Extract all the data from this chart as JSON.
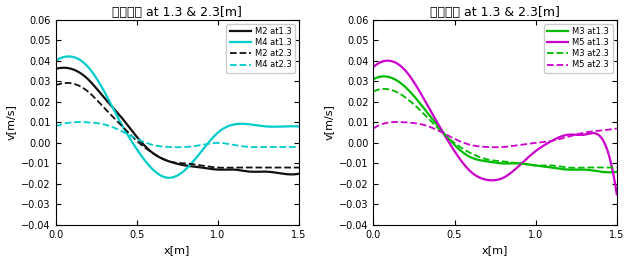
{
  "title": "상승속도 at 1.3 & 2.3[m]",
  "xlabel": "x[m]",
  "ylabel": "v[m/s]",
  "xlim": [
    0,
    1.5
  ],
  "ylim": [
    -0.04,
    0.06
  ],
  "yticks": [
    -0.04,
    -0.03,
    -0.02,
    -0.01,
    0,
    0.01,
    0.02,
    0.03,
    0.04,
    0.05,
    0.06
  ],
  "xticks": [
    0,
    0.5,
    1.0,
    1.5
  ],
  "left": {
    "series": [
      {
        "label": "M2 at1.3",
        "color": "#111111",
        "linestyle": "solid",
        "linewidth": 1.6,
        "x": [
          0.0,
          0.1,
          0.2,
          0.3,
          0.4,
          0.5,
          0.6,
          0.7,
          0.8,
          0.9,
          1.0,
          1.1,
          1.2,
          1.3,
          1.4,
          1.5
        ],
        "y": [
          0.036,
          0.036,
          0.031,
          0.022,
          0.013,
          0.003,
          -0.005,
          -0.009,
          -0.011,
          -0.012,
          -0.013,
          -0.013,
          -0.014,
          -0.014,
          -0.015,
          -0.015
        ]
      },
      {
        "label": "M4 at1.3",
        "color": "#00cccc",
        "linestyle": "solid",
        "linewidth": 1.6,
        "x": [
          0.0,
          0.1,
          0.2,
          0.3,
          0.4,
          0.5,
          0.6,
          0.7,
          0.8,
          0.9,
          1.0,
          1.1,
          1.2,
          1.3,
          1.4,
          1.5
        ],
        "y": [
          0.04,
          0.042,
          0.037,
          0.025,
          0.01,
          -0.003,
          -0.013,
          -0.017,
          -0.013,
          -0.004,
          0.005,
          0.009,
          0.009,
          0.008,
          0.008,
          0.008
        ]
      },
      {
        "label": "M2 at2.3",
        "color": "#111111",
        "linestyle": "dashed",
        "linewidth": 1.3,
        "x": [
          0.0,
          0.1,
          0.2,
          0.3,
          0.4,
          0.5,
          0.6,
          0.7,
          0.8,
          0.9,
          1.0,
          1.1,
          1.2,
          1.3,
          1.4,
          1.5
        ],
        "y": [
          0.028,
          0.029,
          0.025,
          0.017,
          0.009,
          0.001,
          -0.005,
          -0.009,
          -0.01,
          -0.011,
          -0.012,
          -0.012,
          -0.012,
          -0.012,
          -0.012,
          -0.012
        ]
      },
      {
        "label": "M4 at2.3",
        "color": "#00cccc",
        "linestyle": "dashed",
        "linewidth": 1.3,
        "x": [
          0.0,
          0.1,
          0.2,
          0.3,
          0.4,
          0.5,
          0.6,
          0.7,
          0.8,
          0.9,
          1.0,
          1.1,
          1.2,
          1.3,
          1.4,
          1.5
        ],
        "y": [
          0.008,
          0.01,
          0.01,
          0.009,
          0.006,
          0.002,
          -0.001,
          -0.002,
          -0.002,
          -0.001,
          0.0,
          -0.001,
          -0.002,
          -0.002,
          -0.002,
          -0.002
        ]
      }
    ]
  },
  "right": {
    "series": [
      {
        "label": "M3 at1.3",
        "color": "#00bb00",
        "linestyle": "solid",
        "linewidth": 1.6,
        "x": [
          0.0,
          0.1,
          0.2,
          0.3,
          0.4,
          0.5,
          0.6,
          0.7,
          0.8,
          0.9,
          1.0,
          1.1,
          1.2,
          1.3,
          1.4,
          1.5
        ],
        "y": [
          0.031,
          0.032,
          0.027,
          0.018,
          0.008,
          -0.001,
          -0.007,
          -0.009,
          -0.01,
          -0.01,
          -0.011,
          -0.012,
          -0.013,
          -0.013,
          -0.014,
          -0.014
        ]
      },
      {
        "label": "M5 at1.3",
        "color": "#cc00cc",
        "linestyle": "solid",
        "linewidth": 1.6,
        "x": [
          0.0,
          0.1,
          0.2,
          0.3,
          0.4,
          0.5,
          0.6,
          0.7,
          0.8,
          0.9,
          1.0,
          1.1,
          1.2,
          1.3,
          1.4,
          1.5
        ],
        "y": [
          0.037,
          0.04,
          0.035,
          0.023,
          0.009,
          -0.004,
          -0.014,
          -0.018,
          -0.017,
          -0.011,
          -0.004,
          0.001,
          0.004,
          0.004,
          0.003,
          -0.025
        ]
      },
      {
        "label": "M3 at2.3",
        "color": "#00bb00",
        "linestyle": "dashed",
        "linewidth": 1.3,
        "x": [
          0.0,
          0.1,
          0.2,
          0.3,
          0.4,
          0.5,
          0.6,
          0.7,
          0.8,
          0.9,
          1.0,
          1.1,
          1.2,
          1.3,
          1.4,
          1.5
        ],
        "y": [
          0.025,
          0.026,
          0.022,
          0.015,
          0.007,
          0.0,
          -0.005,
          -0.008,
          -0.009,
          -0.01,
          -0.011,
          -0.011,
          -0.012,
          -0.012,
          -0.012,
          -0.012
        ]
      },
      {
        "label": "M5 at2.3",
        "color": "#cc00cc",
        "linestyle": "dashed",
        "linewidth": 1.3,
        "x": [
          0.0,
          0.1,
          0.2,
          0.3,
          0.4,
          0.5,
          0.6,
          0.7,
          0.8,
          0.9,
          1.0,
          1.1,
          1.2,
          1.3,
          1.4,
          1.5
        ],
        "y": [
          0.007,
          0.01,
          0.01,
          0.009,
          0.006,
          0.002,
          -0.001,
          -0.002,
          -0.002,
          -0.001,
          0.0,
          0.001,
          0.003,
          0.005,
          0.006,
          0.007
        ]
      }
    ]
  }
}
